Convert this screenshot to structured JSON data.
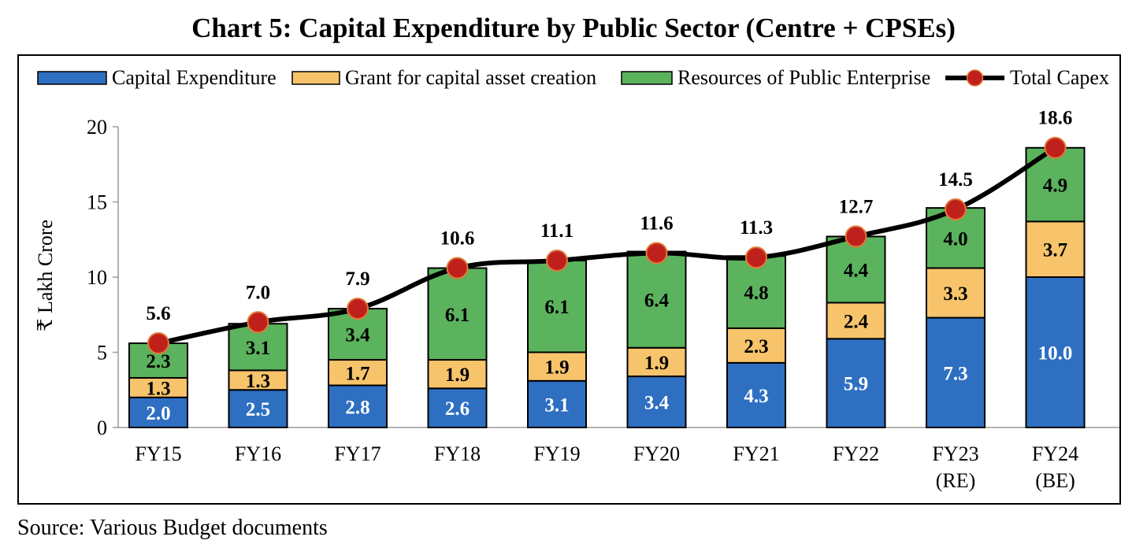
{
  "title": "Chart 5: Capital Expenditure by Public Sector (Centre + CPSEs)",
  "source": "Source: Various Budget documents",
  "chart_data": {
    "type": "bar",
    "stacked": true,
    "categories": [
      "FY15",
      "FY16",
      "FY17",
      "FY18",
      "FY19",
      "FY20",
      "FY21",
      "FY22",
      "FY23\n(RE)",
      "FY24\n(BE)"
    ],
    "series": [
      {
        "name": "Capital Expenditure",
        "color": "#2e6fc2",
        "values": [
          2.0,
          2.5,
          2.8,
          2.6,
          3.1,
          3.4,
          4.3,
          5.9,
          7.3,
          10.0
        ],
        "labels": [
          "2.0",
          "2.5",
          "2.8",
          "2.6",
          "3.1",
          "3.4",
          "4.3",
          "5.9",
          "7.3",
          "10.0"
        ],
        "label_color": "#ffffff"
      },
      {
        "name": "Grant for capital asset creation",
        "color": "#f7c46c",
        "values": [
          1.3,
          1.3,
          1.7,
          1.9,
          1.9,
          1.9,
          2.3,
          2.4,
          3.3,
          3.7
        ],
        "labels": [
          "1.3",
          "1.3",
          "1.7",
          "1.9",
          "1.9",
          "1.9",
          "2.3",
          "2.4",
          "3.3",
          "3.7"
        ],
        "label_color": "#000000"
      },
      {
        "name": "Resources of Public Enterprise",
        "color": "#5bb35d",
        "values": [
          2.3,
          3.1,
          3.4,
          6.1,
          6.1,
          6.4,
          4.8,
          4.4,
          4.0,
          4.9
        ],
        "labels": [
          "2.3",
          "3.1",
          "3.4",
          "6.1",
          "6.1",
          "6.4",
          "4.8",
          "4.4",
          "4.0",
          "4.9"
        ],
        "label_color": "#000000"
      }
    ],
    "line_series": {
      "name": "Total Capex",
      "line_color": "#000000",
      "marker_color": "#c0201c",
      "values": [
        5.6,
        7.0,
        7.9,
        10.6,
        11.1,
        11.6,
        11.3,
        12.7,
        14.5,
        18.6
      ],
      "labels": [
        "5.6",
        "7.0",
        "7.9",
        "10.6",
        "11.1",
        "11.6",
        "11.3",
        "12.7",
        "14.5",
        "18.6"
      ]
    },
    "ylabel": "₹ Lakh Crore",
    "xlabel": "",
    "ylim": [
      0,
      20
    ],
    "yticks": [
      "0",
      "5",
      "10",
      "15",
      "20"
    ],
    "grid": false,
    "legend_position": "top"
  }
}
